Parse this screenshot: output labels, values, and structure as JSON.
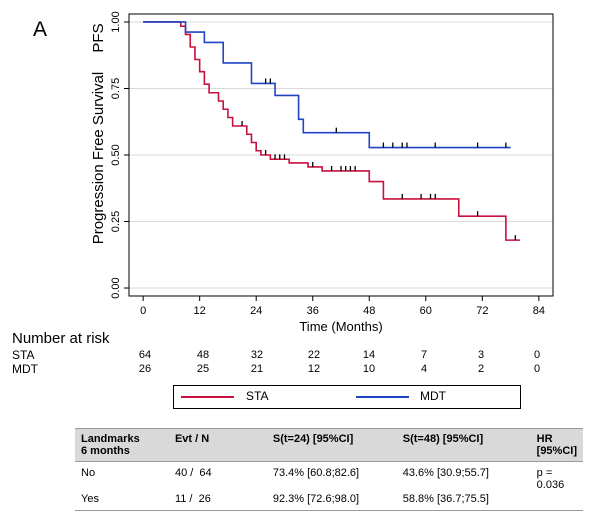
{
  "panel_label": "A",
  "chart_data": {
    "type": "line",
    "subtype": "kaplan-meier",
    "title": "",
    "xlabel": "Time (Months)",
    "ylabel": "Progression Free Survival",
    "ylabel_short": "PFS",
    "xlim": [
      -3,
      87
    ],
    "ylim": [
      -0.03,
      1.03
    ],
    "xticks": [
      0,
      12,
      24,
      36,
      48,
      60,
      72,
      84
    ],
    "yticks": [
      0,
      0.25,
      0.5,
      0.75,
      1
    ],
    "ytick_labels": [
      "0.00",
      "0.25",
      "0.50",
      "0.75",
      "1.00"
    ],
    "grid": "horizontal",
    "series": [
      {
        "name": "STA",
        "color": "#c8103e",
        "steps": [
          [
            0,
            1.0
          ],
          [
            8,
            0.984
          ],
          [
            9,
            0.953
          ],
          [
            10,
            0.906
          ],
          [
            11,
            0.859
          ],
          [
            12,
            0.813
          ],
          [
            13,
            0.766
          ],
          [
            14,
            0.734
          ],
          [
            16,
            0.703
          ],
          [
            17,
            0.672
          ],
          [
            18,
            0.641
          ],
          [
            19,
            0.609
          ],
          [
            22,
            0.578
          ],
          [
            23,
            0.547
          ],
          [
            24,
            0.516
          ],
          [
            25,
            0.5
          ],
          [
            27,
            0.484
          ],
          [
            31,
            0.47
          ],
          [
            35,
            0.455
          ],
          [
            38,
            0.44
          ],
          [
            48,
            0.4
          ],
          [
            51,
            0.335
          ],
          [
            67,
            0.27
          ],
          [
            77,
            0.18
          ],
          [
            80,
            0.18
          ]
        ],
        "censored": [
          [
            21,
            0.609
          ],
          [
            26,
            0.5
          ],
          [
            28,
            0.484
          ],
          [
            29,
            0.484
          ],
          [
            30,
            0.484
          ],
          [
            36,
            0.455
          ],
          [
            40,
            0.44
          ],
          [
            42,
            0.44
          ],
          [
            43,
            0.44
          ],
          [
            44,
            0.44
          ],
          [
            45,
            0.44
          ],
          [
            55,
            0.335
          ],
          [
            59,
            0.335
          ],
          [
            61,
            0.335
          ],
          [
            62,
            0.335
          ],
          [
            71,
            0.27
          ],
          [
            79,
            0.18
          ]
        ]
      },
      {
        "name": "MDT",
        "color": "#1f44c4",
        "steps": [
          [
            0,
            1.0
          ],
          [
            9,
            0.962
          ],
          [
            13,
            0.923
          ],
          [
            17,
            0.846
          ],
          [
            23,
            0.769
          ],
          [
            28,
            0.724
          ],
          [
            33,
            0.634
          ],
          [
            34,
            0.584
          ],
          [
            48,
            0.528
          ],
          [
            78,
            0.528
          ]
        ],
        "censored": [
          [
            26,
            0.769
          ],
          [
            27,
            0.769
          ],
          [
            41,
            0.584
          ],
          [
            51,
            0.528
          ],
          [
            53,
            0.528
          ],
          [
            55,
            0.528
          ],
          [
            56,
            0.528
          ],
          [
            62,
            0.528
          ],
          [
            71,
            0.528
          ],
          [
            77,
            0.528
          ]
        ]
      }
    ]
  },
  "risk_table": {
    "title": "Number at risk",
    "times": [
      0,
      12,
      24,
      36,
      48,
      60,
      72,
      84
    ],
    "rows": [
      {
        "label": "STA",
        "values": [
          "64",
          "48",
          "32",
          "22",
          "14",
          "7",
          "3",
          "0"
        ]
      },
      {
        "label": "MDT",
        "values": [
          "26",
          "25",
          "21",
          "12",
          "10",
          "4",
          "2",
          "0"
        ]
      }
    ]
  },
  "legend": [
    {
      "label": "STA",
      "color": "#c8103e"
    },
    {
      "label": "MDT",
      "color": "#1f44c4"
    }
  ],
  "landmarks": {
    "headers": {
      "c1_l1": "Landmarks",
      "c1_l2": "6 months",
      "c2": "Evt / N",
      "c3": "S(t=24) [95%CI]",
      "c4": "S(t=48) [95%CI]",
      "c5_l1": "HR",
      "c5_l2": "[95%CI]"
    },
    "rows": [
      {
        "group": "No",
        "evt_n": "40 /  64",
        "s24": "73.4% [60.8;82.6]",
        "s48": "43.6% [30.9;55.7]",
        "hr": "p = 0.036"
      },
      {
        "group": "Yes",
        "evt_n": "11 /  26",
        "s24": "92.3% [72.6;98.0]",
        "s48": "58.8% [36.7;75.5]",
        "hr": ""
      }
    ]
  }
}
